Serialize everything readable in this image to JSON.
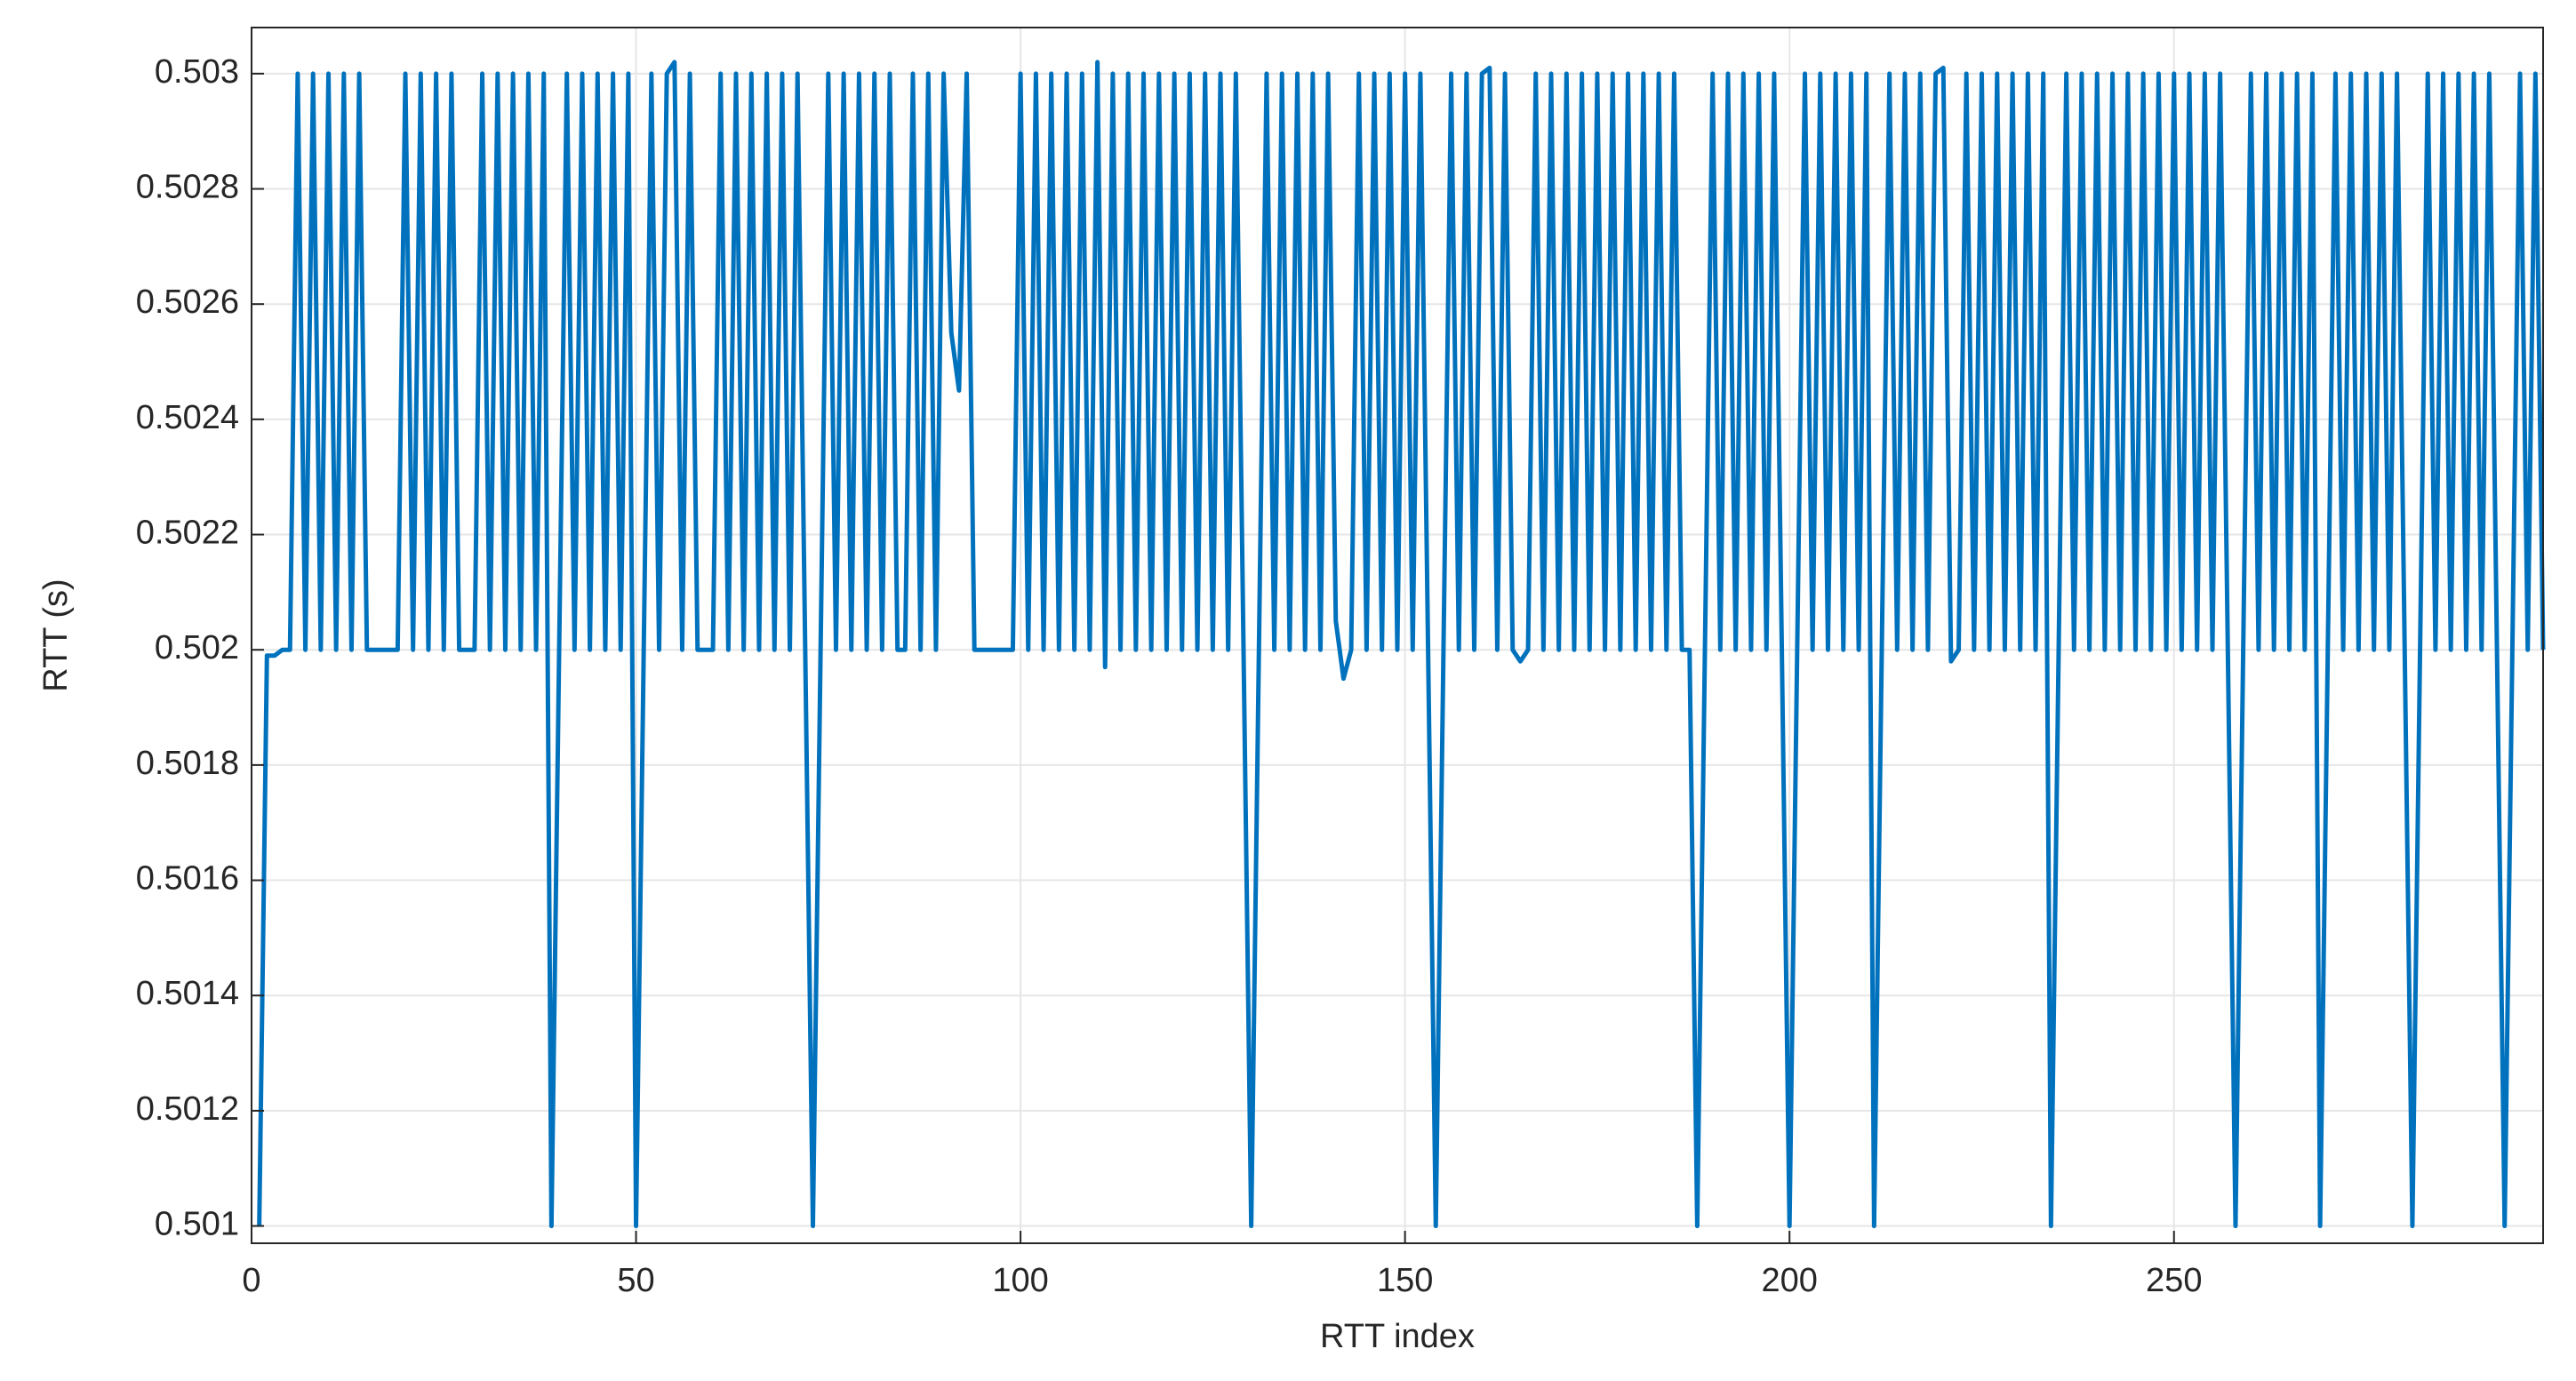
{
  "chart_data": {
    "type": "line",
    "x_label": "RTT index",
    "y_label": "RTT (s)",
    "xlim": [
      0,
      298
    ],
    "ylim": [
      0.50097,
      0.50308
    ],
    "xticks": [
      0,
      50,
      100,
      150,
      200,
      250
    ],
    "yticks": [
      0.501,
      0.5012,
      0.5014,
      0.5016,
      0.5018,
      0.502,
      0.5022,
      0.5024,
      0.5026,
      0.5028,
      0.503
    ],
    "grid": true,
    "x": [
      1,
      2,
      3,
      4,
      5,
      6,
      7,
      8,
      9,
      10,
      11,
      12,
      13,
      14,
      15,
      16,
      17,
      18,
      19,
      20,
      21,
      22,
      23,
      24,
      25,
      26,
      27,
      28,
      29,
      30,
      31,
      32,
      33,
      34,
      35,
      36,
      37,
      38,
      39,
      40,
      41,
      42,
      43,
      44,
      45,
      46,
      47,
      48,
      49,
      50,
      51,
      52,
      53,
      54,
      55,
      56,
      57,
      58,
      59,
      60,
      61,
      62,
      63,
      64,
      65,
      66,
      67,
      68,
      69,
      70,
      71,
      72,
      73,
      74,
      75,
      76,
      77,
      78,
      79,
      80,
      81,
      82,
      83,
      84,
      85,
      86,
      87,
      88,
      89,
      90,
      91,
      92,
      93,
      94,
      95,
      96,
      97,
      98,
      99,
      100,
      101,
      102,
      103,
      104,
      105,
      106,
      107,
      108,
      109,
      110,
      111,
      112,
      113,
      114,
      115,
      116,
      117,
      118,
      119,
      120,
      121,
      122,
      123,
      124,
      125,
      126,
      127,
      128,
      129,
      130,
      131,
      132,
      133,
      134,
      135,
      136,
      137,
      138,
      139,
      140,
      141,
      142,
      143,
      144,
      145,
      146,
      147,
      148,
      149,
      150,
      151,
      152,
      153,
      154,
      155,
      156,
      157,
      158,
      159,
      160,
      161,
      162,
      163,
      164,
      165,
      166,
      167,
      168,
      169,
      170,
      171,
      172,
      173,
      174,
      175,
      176,
      177,
      178,
      179,
      180,
      181,
      182,
      183,
      184,
      185,
      186,
      187,
      188,
      189,
      190,
      191,
      192,
      193,
      194,
      195,
      196,
      197,
      198,
      199,
      200,
      201,
      202,
      203,
      204,
      205,
      206,
      207,
      208,
      209,
      210,
      211,
      212,
      213,
      214,
      215,
      216,
      217,
      218,
      219,
      220,
      221,
      222,
      223,
      224,
      225,
      226,
      227,
      228,
      229,
      230,
      231,
      232,
      233,
      234,
      235,
      236,
      237,
      238,
      239,
      240,
      241,
      242,
      243,
      244,
      245,
      246,
      247,
      248,
      249,
      250,
      251,
      252,
      253,
      254,
      255,
      256,
      257,
      258,
      259,
      260,
      261,
      262,
      263,
      264,
      265,
      266,
      267,
      268,
      269,
      270,
      271,
      272,
      273,
      274,
      275,
      276,
      277,
      278,
      279,
      280,
      281,
      282,
      283,
      284,
      285,
      286,
      287,
      288,
      289,
      290,
      291,
      292,
      293,
      294,
      295,
      296,
      297,
      298
    ],
    "series": [
      {
        "color": "#0072bd",
        "values": [
          0.501,
          0.50199,
          0.50199,
          0.502,
          0.502,
          0.503,
          0.502,
          0.503,
          0.502,
          0.503,
          0.502,
          0.503,
          0.502,
          0.503,
          0.502,
          0.502,
          0.502,
          0.502,
          0.502,
          0.503,
          0.502,
          0.503,
          0.502,
          0.503,
          0.502,
          0.503,
          0.502,
          0.502,
          0.502,
          0.503,
          0.502,
          0.503,
          0.502,
          0.503,
          0.502,
          0.503,
          0.502,
          0.503,
          0.501,
          0.502,
          0.503,
          0.502,
          0.503,
          0.502,
          0.503,
          0.502,
          0.503,
          0.502,
          0.503,
          0.501,
          0.502,
          0.503,
          0.502,
          0.503,
          0.50302,
          0.502,
          0.503,
          0.502,
          0.502,
          0.502,
          0.503,
          0.502,
          0.503,
          0.502,
          0.503,
          0.502,
          0.503,
          0.502,
          0.503,
          0.502,
          0.503,
          0.502,
          0.501,
          0.502,
          0.503,
          0.502,
          0.503,
          0.502,
          0.503,
          0.502,
          0.503,
          0.502,
          0.503,
          0.502,
          0.502,
          0.503,
          0.502,
          0.503,
          0.502,
          0.503,
          0.50255,
          0.50245,
          0.503,
          0.502,
          0.502,
          0.502,
          0.502,
          0.502,
          0.502,
          0.503,
          0.502,
          0.503,
          0.502,
          0.503,
          0.502,
          0.503,
          0.502,
          0.503,
          0.502,
          0.50302,
          0.50197,
          0.503,
          0.502,
          0.503,
          0.502,
          0.503,
          0.502,
          0.503,
          0.502,
          0.503,
          0.502,
          0.503,
          0.502,
          0.503,
          0.502,
          0.503,
          0.502,
          0.503,
          0.502,
          0.501,
          0.502,
          0.503,
          0.502,
          0.503,
          0.502,
          0.503,
          0.502,
          0.503,
          0.502,
          0.503,
          0.50205,
          0.50195,
          0.502,
          0.503,
          0.502,
          0.503,
          0.502,
          0.503,
          0.502,
          0.503,
          0.502,
          0.503,
          0.502,
          0.501,
          0.502,
          0.503,
          0.502,
          0.503,
          0.502,
          0.503,
          0.50301,
          0.502,
          0.503,
          0.502,
          0.50198,
          0.502,
          0.503,
          0.502,
          0.503,
          0.502,
          0.503,
          0.502,
          0.503,
          0.502,
          0.503,
          0.502,
          0.503,
          0.502,
          0.503,
          0.502,
          0.503,
          0.502,
          0.503,
          0.502,
          0.503,
          0.502,
          0.502,
          0.501,
          0.502,
          0.503,
          0.502,
          0.503,
          0.502,
          0.503,
          0.502,
          0.503,
          0.502,
          0.503,
          0.502,
          0.501,
          0.502,
          0.503,
          0.502,
          0.503,
          0.502,
          0.503,
          0.502,
          0.503,
          0.502,
          0.503,
          0.501,
          0.502,
          0.503,
          0.502,
          0.503,
          0.502,
          0.503,
          0.502,
          0.503,
          0.50301,
          0.50198,
          0.502,
          0.503,
          0.502,
          0.503,
          0.502,
          0.503,
          0.502,
          0.503,
          0.502,
          0.503,
          0.502,
          0.503,
          0.501,
          0.502,
          0.503,
          0.502,
          0.503,
          0.502,
          0.503,
          0.502,
          0.503,
          0.502,
          0.503,
          0.502,
          0.503,
          0.502,
          0.503,
          0.502,
          0.503,
          0.502,
          0.503,
          0.502,
          0.503,
          0.502,
          0.503,
          0.502,
          0.501,
          0.502,
          0.503,
          0.502,
          0.503,
          0.502,
          0.503,
          0.502,
          0.503,
          0.502,
          0.503,
          0.501,
          0.502,
          0.503,
          0.502,
          0.503,
          0.502,
          0.503,
          0.502,
          0.503,
          0.502,
          0.503,
          0.502,
          0.501,
          0.502,
          0.503,
          0.502,
          0.503,
          0.502,
          0.503,
          0.502,
          0.503,
          0.502,
          0.503,
          0.502,
          0.501,
          0.502,
          0.503,
          0.502,
          0.503,
          0.502
        ]
      }
    ]
  }
}
